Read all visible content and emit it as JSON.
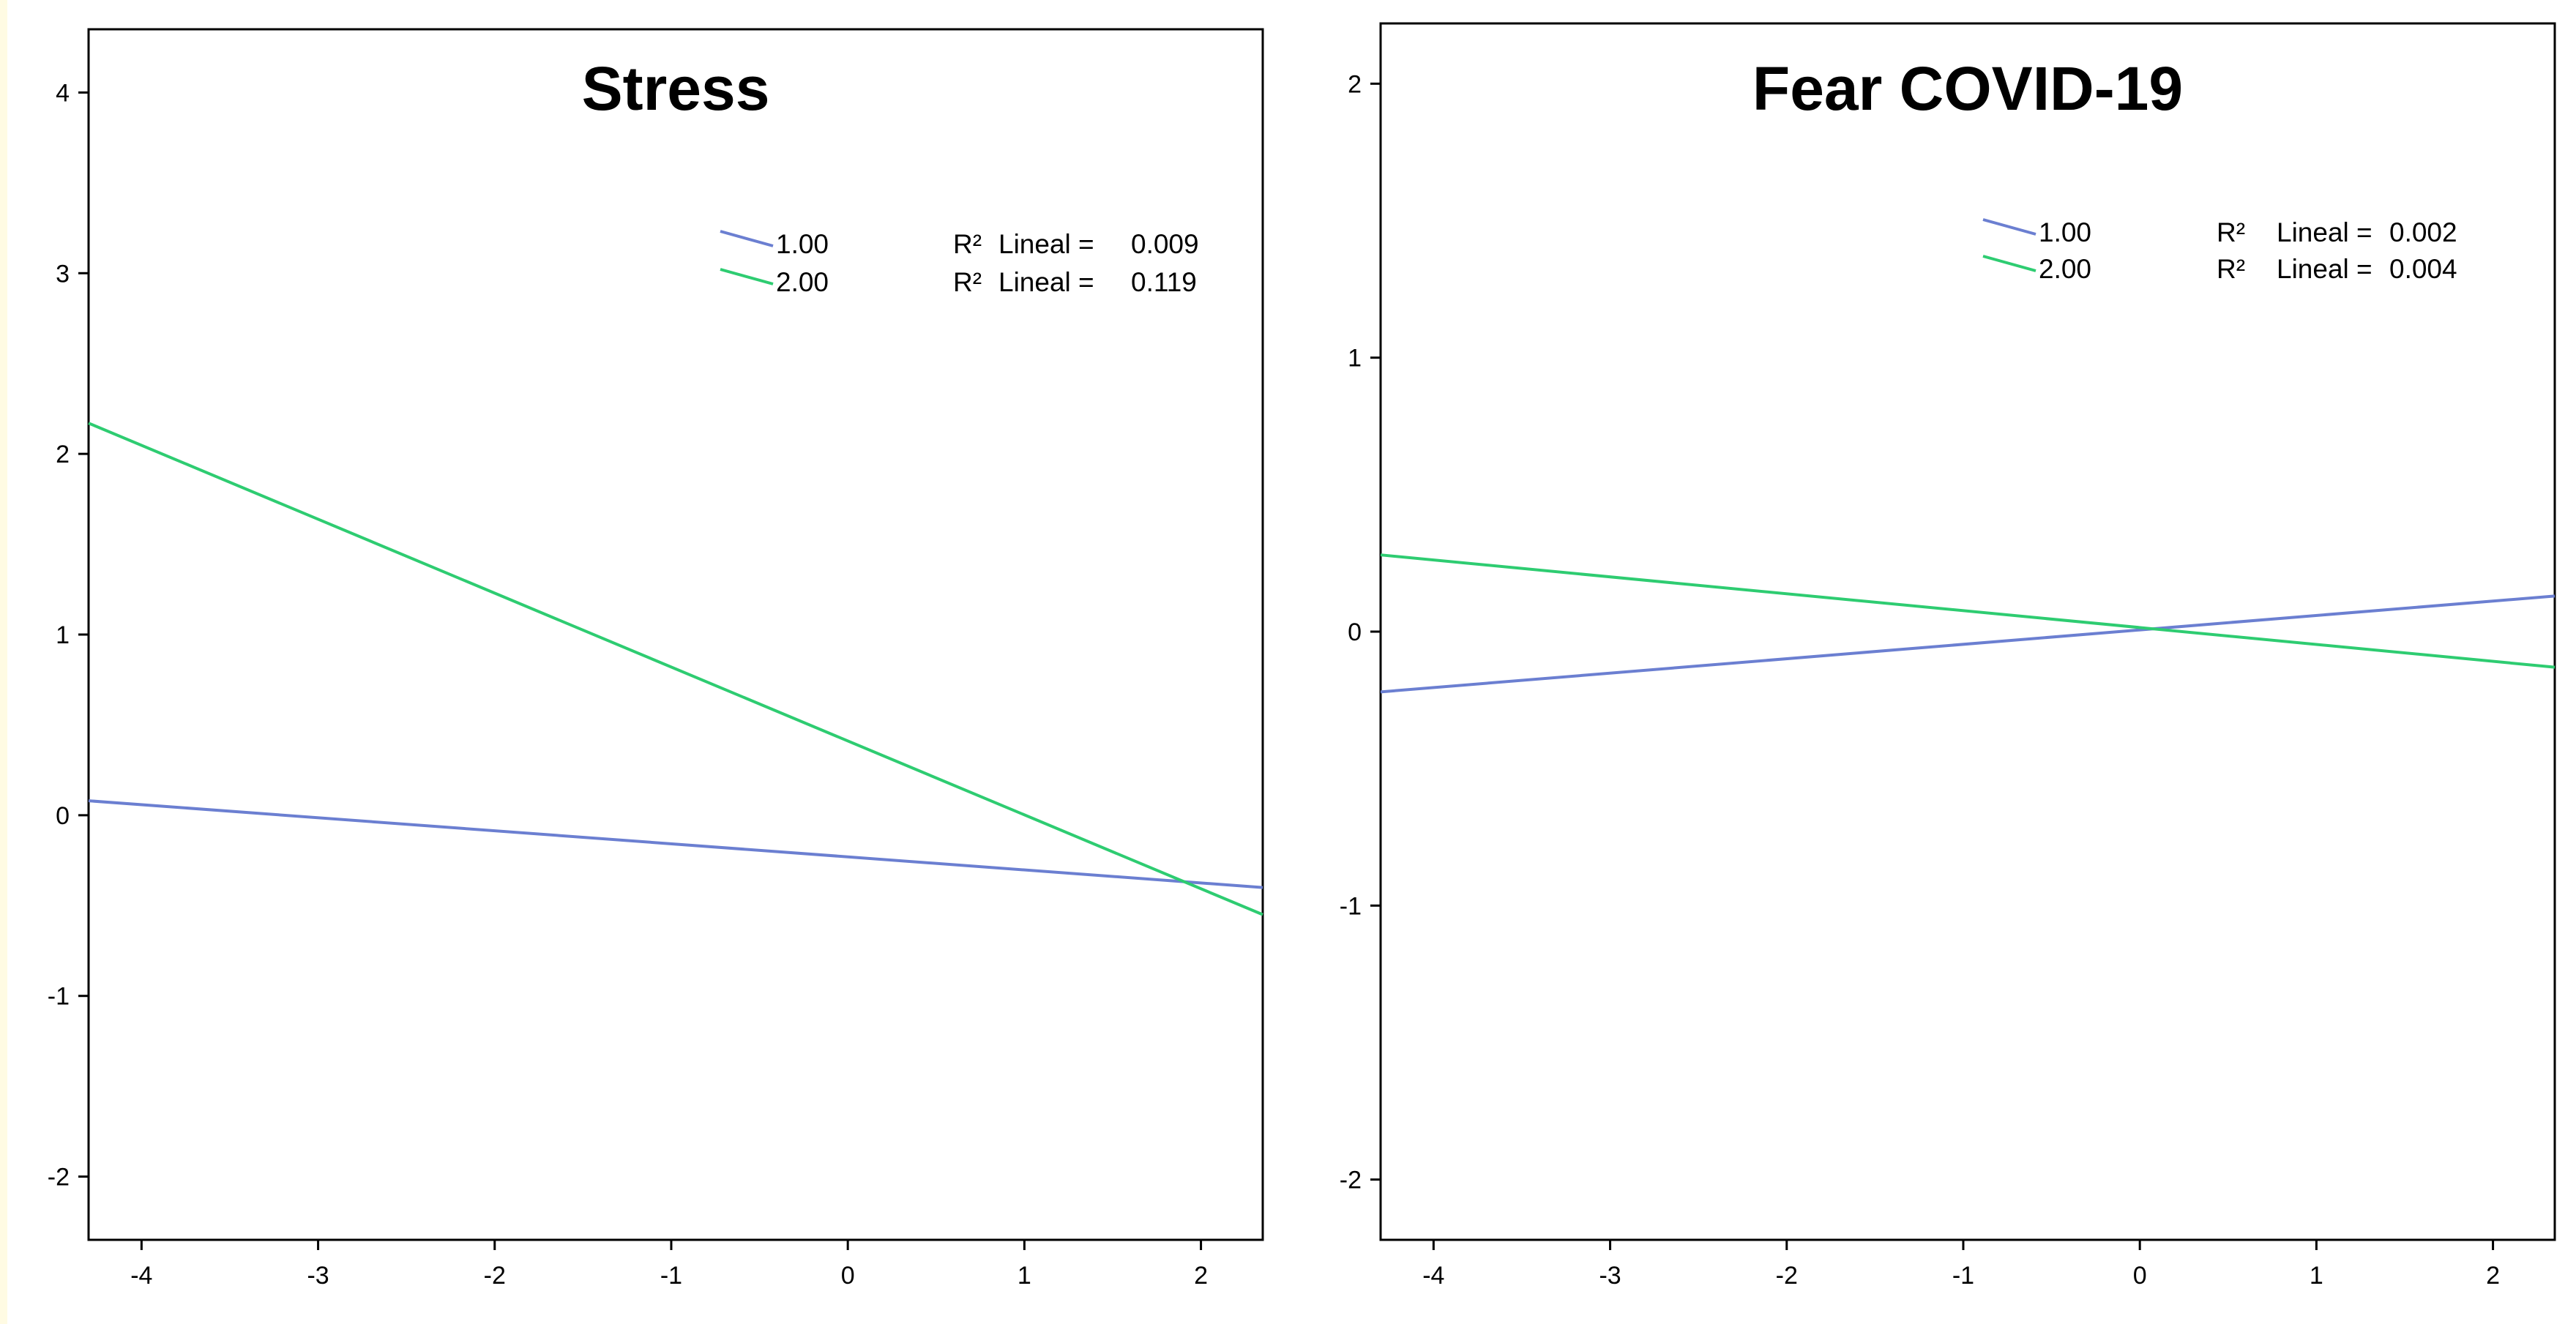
{
  "chart_data": [
    {
      "type": "line",
      "title": "Stress",
      "xlabel": "",
      "ylabel": "",
      "xlim": [
        -4.3,
        2.35
      ],
      "ylim": [
        -2.35,
        4.35
      ],
      "x_ticks": [
        -4,
        -3,
        -2,
        -1,
        0,
        1,
        2
      ],
      "y_ticks": [
        -2,
        -1,
        0,
        1,
        2,
        3,
        4
      ],
      "grid": false,
      "legend_position": "top-right",
      "series": [
        {
          "name": "1.00",
          "r2_label": "R²",
          "r2_text": "Lineal = ",
          "r2_value": "0.009",
          "color": "#6b7fd1",
          "x": [
            -4.3,
            2.35
          ],
          "y": [
            0.08,
            -0.4
          ]
        },
        {
          "name": "2.00",
          "r2_label": "R²",
          "r2_text": "Lineal = ",
          "r2_value": "0.119",
          "color": "#2ecc71",
          "x": [
            -4.3,
            2.35
          ],
          "y": [
            2.17,
            -0.55
          ]
        }
      ]
    },
    {
      "type": "line",
      "title": "Fear COVID-19",
      "xlabel": "",
      "ylabel": "",
      "xlim": [
        -4.3,
        2.35
      ],
      "ylim": [
        -2.22,
        2.22
      ],
      "x_ticks": [
        -4,
        -3,
        -2,
        -1,
        0,
        1,
        2
      ],
      "y_ticks": [
        -2,
        -1,
        0,
        1,
        2
      ],
      "grid": false,
      "legend_position": "top-right",
      "series": [
        {
          "name": "1.00",
          "r2_label": "R²",
          "r2_text": "Lineal = ",
          "r2_value": "0.002",
          "color": "#6b7fd1",
          "x": [
            -4.3,
            2.35
          ],
          "y": [
            -0.22,
            0.13
          ]
        },
        {
          "name": "2.00",
          "r2_label": "R²",
          "r2_text": "Lineal = ",
          "r2_value": "0.004",
          "color": "#2ecc71",
          "x": [
            -4.3,
            2.35
          ],
          "y": [
            0.28,
            -0.13
          ]
        }
      ]
    }
  ]
}
